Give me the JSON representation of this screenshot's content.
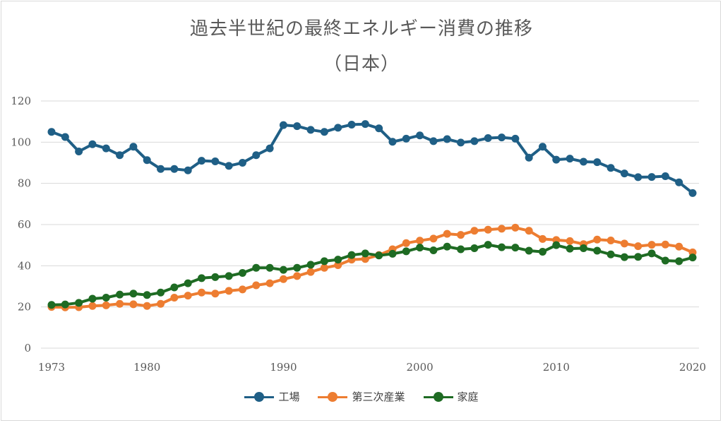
{
  "chart_data": {
    "type": "line",
    "title": "過去半世紀の最終エネルギー消費の推移",
    "subtitle": "（日本）",
    "ylim": [
      0,
      120
    ],
    "yticks": [
      0,
      20,
      40,
      60,
      80,
      100,
      120
    ],
    "xlim": [
      1973,
      2020
    ],
    "xticks": [
      1973,
      1980,
      1990,
      2000,
      2010,
      2020
    ],
    "grid": true,
    "legend_position": "bottom",
    "x": [
      1973,
      1974,
      1975,
      1976,
      1977,
      1978,
      1979,
      1980,
      1981,
      1982,
      1983,
      1984,
      1985,
      1986,
      1987,
      1988,
      1989,
      1990,
      1991,
      1992,
      1993,
      1994,
      1995,
      1996,
      1997,
      1998,
      1999,
      2000,
      2001,
      2002,
      2003,
      2004,
      2005,
      2006,
      2007,
      2008,
      2009,
      2010,
      2011,
      2012,
      2013,
      2014,
      2015,
      2016,
      2017,
      2018,
      2019,
      2020
    ],
    "series": [
      {
        "name": "工場",
        "color": "#1f5f86",
        "values": [
          105,
          102.5,
          95.5,
          99,
          97,
          93.7,
          97.8,
          91.3,
          87,
          87,
          86.3,
          91,
          90.7,
          88.5,
          90,
          93.7,
          97,
          108.3,
          107.8,
          106,
          105,
          107,
          108.5,
          108.8,
          106.7,
          100.2,
          101.7,
          103.3,
          100.5,
          101.5,
          99.8,
          100.5,
          102,
          102.3,
          101.7,
          92.5,
          97.8,
          91.5,
          92,
          90.5,
          90.3,
          87.5,
          84.8,
          83,
          83.1,
          83.5,
          80.5,
          75.3
        ]
      },
      {
        "name": "第三次産業",
        "color": "#ed7d31",
        "values": [
          20,
          19.8,
          19.9,
          20.5,
          20.8,
          21.5,
          21.3,
          20.5,
          21.5,
          24.5,
          25.5,
          27,
          26.5,
          27.8,
          28.5,
          30.5,
          31.5,
          33.5,
          35,
          37,
          39,
          40.3,
          43,
          43.3,
          45.2,
          48,
          51,
          52.2,
          53.2,
          55.5,
          55,
          57,
          57.5,
          58,
          58.5,
          57,
          53,
          52.5,
          52,
          50.5,
          52.7,
          52.3,
          50.8,
          49.5,
          50.2,
          50.3,
          49.3,
          46.5
        ]
      },
      {
        "name": "家庭",
        "color": "#1e6b23",
        "values": [
          21,
          21.2,
          22,
          24,
          24.5,
          26,
          26.5,
          25.8,
          27,
          29.5,
          31.5,
          34,
          34.5,
          35,
          36.5,
          39,
          39,
          38,
          39,
          40.5,
          42.2,
          43,
          45.2,
          46,
          45,
          45.8,
          47,
          48.8,
          47.5,
          49.3,
          48,
          48.5,
          50.2,
          49,
          48.8,
          47.3,
          46.8,
          50,
          48.3,
          48.5,
          47.3,
          45.5,
          44.2,
          44.3,
          46,
          42.5,
          42.2,
          44
        ]
      }
    ]
  }
}
